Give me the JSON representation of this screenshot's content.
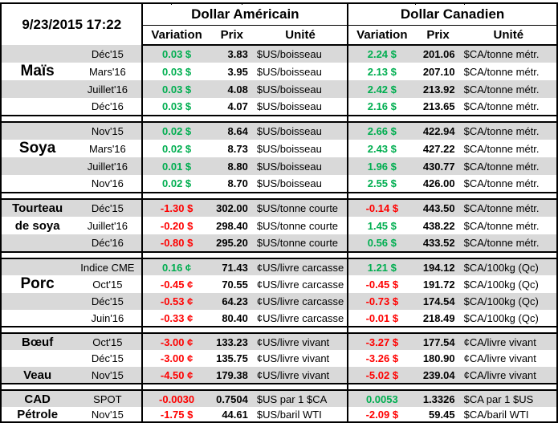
{
  "timestamp": "9/23/2015 17:22",
  "sections": {
    "usd": "Dollar Américain",
    "cad": "Dollar Canadien"
  },
  "columns": {
    "variation": "Variation",
    "prix": "Prix",
    "unite": "Unité"
  },
  "colors": {
    "positive": "#00AE50",
    "negative": "#FF0000",
    "band": "#D9D9D9",
    "border": "#000000"
  },
  "blocks": [
    {
      "commodity": "Maïs",
      "rows": [
        {
          "label": "",
          "label_size": "",
          "month": "Déc'15",
          "us_var": "0.03 $",
          "us_prix": "3.83",
          "us_unit": "$US/boisseau",
          "ca_var": "2.24 $",
          "ca_prix": "201.06",
          "ca_unit": "$CA/tonne métr."
        },
        {
          "label": "Maïs",
          "label_size": "lg",
          "month": "Mars'16",
          "us_var": "0.03 $",
          "us_prix": "3.95",
          "us_unit": "$US/boisseau",
          "ca_var": "2.13 $",
          "ca_prix": "207.10",
          "ca_unit": "$CA/tonne métr."
        },
        {
          "label": "",
          "label_size": "",
          "month": "Juillet'16",
          "us_var": "0.03 $",
          "us_prix": "4.08",
          "us_unit": "$US/boisseau",
          "ca_var": "2.42 $",
          "ca_prix": "213.92",
          "ca_unit": "$CA/tonne métr."
        },
        {
          "label": "",
          "label_size": "",
          "month": "Déc'16",
          "us_var": "0.03 $",
          "us_prix": "4.07",
          "us_unit": "$US/boisseau",
          "ca_var": "2.16 $",
          "ca_prix": "213.65",
          "ca_unit": "$CA/tonne métr."
        }
      ]
    },
    {
      "commodity": "Soya",
      "rows": [
        {
          "label": "",
          "label_size": "",
          "month": "Nov'15",
          "us_var": "0.02 $",
          "us_prix": "8.64",
          "us_unit": "$US/boisseau",
          "ca_var": "2.66 $",
          "ca_prix": "422.94",
          "ca_unit": "$CA/tonne métr."
        },
        {
          "label": "Soya",
          "label_size": "lg",
          "month": "Mars'16",
          "us_var": "0.02 $",
          "us_prix": "8.73",
          "us_unit": "$US/boisseau",
          "ca_var": "2.43 $",
          "ca_prix": "427.22",
          "ca_unit": "$CA/tonne métr."
        },
        {
          "label": "",
          "label_size": "",
          "month": "Juillet'16",
          "us_var": "0.01 $",
          "us_prix": "8.80",
          "us_unit": "$US/boisseau",
          "ca_var": "1.96 $",
          "ca_prix": "430.77",
          "ca_unit": "$CA/tonne métr."
        },
        {
          "label": "",
          "label_size": "",
          "month": "Nov'16",
          "us_var": "0.02 $",
          "us_prix": "8.70",
          "us_unit": "$US/boisseau",
          "ca_var": "2.55 $",
          "ca_prix": "426.00",
          "ca_unit": "$CA/tonne métr."
        }
      ]
    },
    {
      "commodity": "Tourteau de soya",
      "rows": [
        {
          "label": "Tourteau",
          "label_size": "md",
          "month": "Déc'15",
          "us_var": "-1.30 $",
          "us_prix": "302.00",
          "us_unit": "$US/tonne courte",
          "ca_var": "-0.14 $",
          "ca_prix": "443.50",
          "ca_unit": "$CA/tonne métr."
        },
        {
          "label": "de soya",
          "label_size": "md",
          "month": "Juillet'16",
          "us_var": "-0.20 $",
          "us_prix": "298.40",
          "us_unit": "$US/tonne courte",
          "ca_var": "1.45 $",
          "ca_prix": "438.22",
          "ca_unit": "$CA/tonne métr."
        },
        {
          "label": "",
          "label_size": "",
          "month": "Déc'16",
          "us_var": "-0.80 $",
          "us_prix": "295.20",
          "us_unit": "$US/tonne courte",
          "ca_var": "0.56 $",
          "ca_prix": "433.52",
          "ca_unit": "$CA/tonne métr."
        }
      ]
    },
    {
      "commodity": "Porc",
      "rows": [
        {
          "label": "",
          "label_size": "",
          "month": "Indice CME",
          "us_var": "0.16 ¢",
          "us_prix": "71.43",
          "us_unit": "¢US/livre carcasse",
          "ca_var": "1.21 $",
          "ca_prix": "194.12",
          "ca_unit": "$CA/100kg (Qc)"
        },
        {
          "label": "Porc",
          "label_size": "lg",
          "month": "Oct'15",
          "us_var": "-0.45 ¢",
          "us_prix": "70.55",
          "us_unit": "¢US/livre carcasse",
          "ca_var": "-0.45 $",
          "ca_prix": "191.72",
          "ca_unit": "$CA/100kg (Qc)"
        },
        {
          "label": "",
          "label_size": "",
          "month": "Déc'15",
          "us_var": "-0.53 ¢",
          "us_prix": "64.23",
          "us_unit": "¢US/livre carcasse",
          "ca_var": "-0.73 $",
          "ca_prix": "174.54",
          "ca_unit": "$CA/100kg (Qc)"
        },
        {
          "label": "",
          "label_size": "",
          "month": "Juin'16",
          "us_var": "-0.33 ¢",
          "us_prix": "80.40",
          "us_unit": "¢US/livre carcasse",
          "ca_var": "-0.01 $",
          "ca_prix": "218.49",
          "ca_unit": "$CA/100kg (Qc)"
        }
      ]
    },
    {
      "commodity": "Bœuf / Veau",
      "rows": [
        {
          "label": "Bœuf",
          "label_size": "md",
          "month": "Oct'15",
          "us_var": "-3.00 ¢",
          "us_prix": "133.23",
          "us_unit": "¢US/livre vivant",
          "ca_var": "-3.27 $",
          "ca_prix": "177.54",
          "ca_unit": "¢CA/livre vivant"
        },
        {
          "label": "",
          "label_size": "",
          "month": "Déc'15",
          "us_var": "-3.00 ¢",
          "us_prix": "135.75",
          "us_unit": "¢US/livre vivant",
          "ca_var": "-3.26 $",
          "ca_prix": "180.90",
          "ca_unit": "¢CA/livre vivant"
        },
        {
          "label": "Veau",
          "label_size": "md",
          "month": "Nov'15",
          "us_var": "-4.50 ¢",
          "us_prix": "179.38",
          "us_unit": "¢US/livre vivant",
          "ca_var": "-5.02 $",
          "ca_prix": "239.04",
          "ca_unit": "¢CA/livre vivant"
        }
      ]
    },
    {
      "commodity": "CAD / Pétrole",
      "rows": [
        {
          "label": "CAD",
          "label_size": "md",
          "month": "SPOT",
          "us_var": "-0.0030",
          "us_prix": "0.7504",
          "us_unit": "$US par 1 $CA",
          "ca_var": "0.0053",
          "ca_prix": "1.3326",
          "ca_unit": "$CA par 1 $US"
        },
        {
          "label": "Pétrole",
          "label_size": "md",
          "month": "Nov'15",
          "us_var": "-1.75 $",
          "us_prix": "44.61",
          "us_unit": "$US/baril WTI",
          "ca_var": "-2.09 $",
          "ca_prix": "59.45",
          "ca_unit": "$CA/baril WTI"
        }
      ]
    }
  ]
}
